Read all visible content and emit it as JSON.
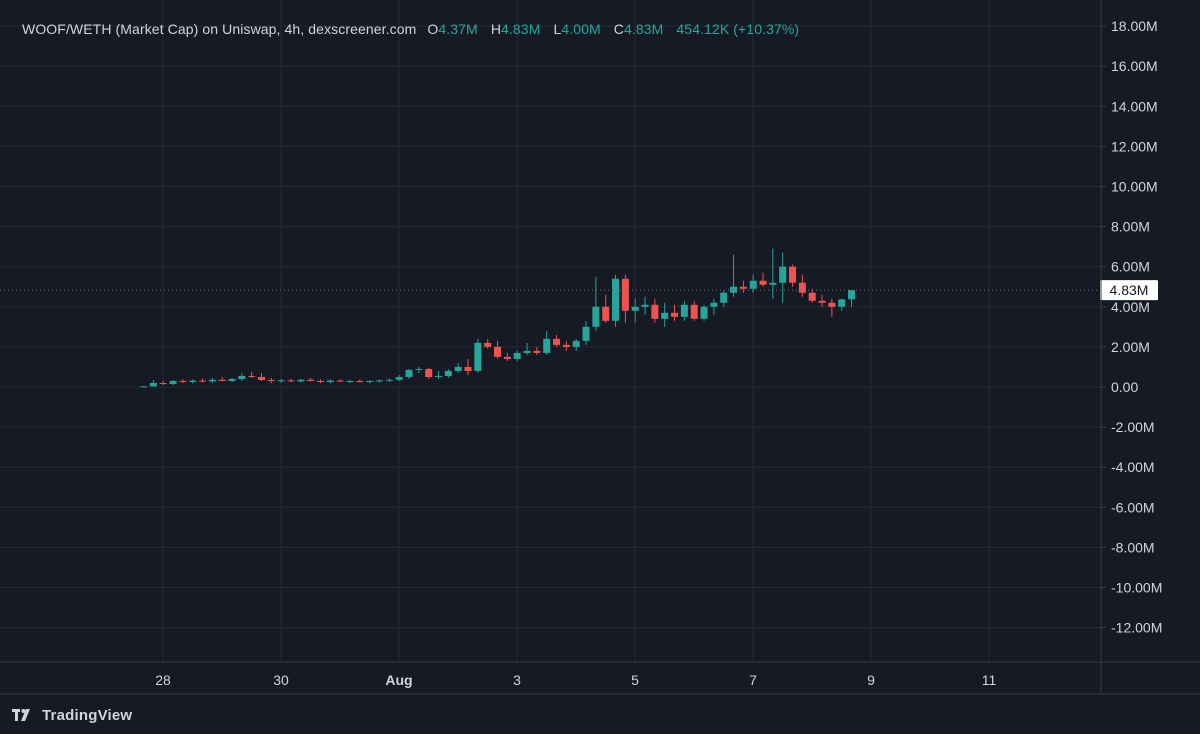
{
  "legend": {
    "title": "WOOF/WETH (Market Cap) on Uniswap, 4h, dexscreener.com",
    "open_key": "O",
    "open": "4.37M",
    "high_key": "H",
    "high": "4.83M",
    "low_key": "L",
    "low": "4.00M",
    "close_key": "C",
    "close": "4.83M",
    "change": "454.12K (+10.37%)"
  },
  "footer": {
    "brand": "TradingView",
    "logo_icon": "tradingview-logo-icon"
  },
  "colors": {
    "background": "#161a25",
    "grid": "#262a36",
    "up": "#26a69a",
    "down": "#ef5350",
    "text": "#d1d4dc"
  },
  "chart_data": {
    "type": "candlestick",
    "interval": "4h",
    "y_unit": "M (USD market cap)",
    "ylim": [
      -13,
      18.5
    ],
    "y_ticks": [
      18,
      16,
      14,
      12,
      10,
      8,
      6,
      4,
      2,
      0,
      -2,
      -4,
      -6,
      -8,
      -10,
      -12
    ],
    "y_tick_labels": [
      "18.00M",
      "16.00M",
      "14.00M",
      "12.00M",
      "10.00M",
      "8.00M",
      "6.00M",
      "4.00M",
      "2.00M",
      "0.00",
      "-2.00M",
      "-4.00M",
      "-6.00M",
      "-8.00M",
      "-10.00M",
      "-12.00M"
    ],
    "x_range_days": [
      26.5,
      43.3
    ],
    "x_ticks": [
      {
        "day": 28,
        "label": "28",
        "bold": false
      },
      {
        "day": 30,
        "label": "30",
        "bold": false
      },
      {
        "day": 32,
        "label": "Aug",
        "bold": true
      },
      {
        "day": 34,
        "label": "3",
        "bold": false
      },
      {
        "day": 36,
        "label": "5",
        "bold": false
      },
      {
        "day": 38,
        "label": "7",
        "bold": false
      },
      {
        "day": 40,
        "label": "9",
        "bold": false
      },
      {
        "day": 42,
        "label": "11",
        "bold": false
      }
    ],
    "last_price": 4.83,
    "last_price_label": "4.83M",
    "start_day": 27.67,
    "step_days": 0.16667,
    "candles": [
      [
        0.02,
        0.05,
        0.0,
        0.03
      ],
      [
        0.03,
        0.35,
        0.02,
        0.2
      ],
      [
        0.2,
        0.3,
        0.1,
        0.15
      ],
      [
        0.15,
        0.35,
        0.1,
        0.3
      ],
      [
        0.3,
        0.4,
        0.2,
        0.25
      ],
      [
        0.25,
        0.38,
        0.18,
        0.32
      ],
      [
        0.32,
        0.42,
        0.22,
        0.28
      ],
      [
        0.28,
        0.45,
        0.2,
        0.36
      ],
      [
        0.36,
        0.5,
        0.28,
        0.3
      ],
      [
        0.3,
        0.45,
        0.25,
        0.4
      ],
      [
        0.4,
        0.7,
        0.3,
        0.55
      ],
      [
        0.55,
        0.75,
        0.45,
        0.5
      ],
      [
        0.5,
        0.7,
        0.3,
        0.35
      ],
      [
        0.35,
        0.45,
        0.2,
        0.3
      ],
      [
        0.3,
        0.4,
        0.22,
        0.33
      ],
      [
        0.33,
        0.42,
        0.25,
        0.28
      ],
      [
        0.28,
        0.4,
        0.22,
        0.36
      ],
      [
        0.36,
        0.45,
        0.28,
        0.3
      ],
      [
        0.3,
        0.38,
        0.2,
        0.25
      ],
      [
        0.25,
        0.38,
        0.18,
        0.32
      ],
      [
        0.32,
        0.4,
        0.25,
        0.28
      ],
      [
        0.28,
        0.36,
        0.2,
        0.3
      ],
      [
        0.3,
        0.38,
        0.22,
        0.26
      ],
      [
        0.26,
        0.34,
        0.18,
        0.3
      ],
      [
        0.3,
        0.38,
        0.22,
        0.33
      ],
      [
        0.33,
        0.42,
        0.25,
        0.36
      ],
      [
        0.36,
        0.6,
        0.3,
        0.5
      ],
      [
        0.5,
        0.9,
        0.4,
        0.85
      ],
      [
        0.85,
        1.0,
        0.7,
        0.9
      ],
      [
        0.9,
        0.95,
        0.4,
        0.5
      ],
      [
        0.5,
        0.8,
        0.4,
        0.55
      ],
      [
        0.55,
        0.9,
        0.45,
        0.8
      ],
      [
        0.8,
        1.2,
        0.7,
        1.0
      ],
      [
        1.0,
        1.4,
        0.6,
        0.8
      ],
      [
        0.8,
        2.4,
        0.7,
        2.2
      ],
      [
        2.2,
        2.4,
        1.9,
        2.0
      ],
      [
        2.0,
        2.3,
        1.4,
        1.5
      ],
      [
        1.5,
        1.7,
        1.3,
        1.4
      ],
      [
        1.4,
        1.8,
        1.3,
        1.7
      ],
      [
        1.7,
        2.2,
        1.6,
        1.8
      ],
      [
        1.8,
        2.0,
        1.6,
        1.7
      ],
      [
        1.7,
        2.8,
        1.6,
        2.4
      ],
      [
        2.4,
        2.6,
        2.0,
        2.1
      ],
      [
        2.1,
        2.3,
        1.8,
        2.0
      ],
      [
        2.0,
        2.4,
        1.8,
        2.3
      ],
      [
        2.3,
        3.3,
        2.1,
        3.0
      ],
      [
        3.0,
        5.5,
        2.8,
        4.0
      ],
      [
        4.0,
        4.6,
        3.2,
        3.3
      ],
      [
        3.3,
        5.6,
        3.0,
        5.4
      ],
      [
        5.4,
        5.6,
        3.2,
        3.8
      ],
      [
        3.8,
        4.4,
        3.2,
        4.0
      ],
      [
        4.0,
        4.5,
        3.6,
        4.1
      ],
      [
        4.1,
        4.4,
        3.2,
        3.4
      ],
      [
        3.4,
        4.2,
        3.0,
        3.7
      ],
      [
        3.7,
        4.1,
        3.3,
        3.5
      ],
      [
        3.5,
        4.3,
        3.3,
        4.1
      ],
      [
        4.1,
        4.3,
        3.3,
        3.4
      ],
      [
        3.4,
        4.1,
        3.3,
        4.0
      ],
      [
        4.0,
        4.4,
        3.6,
        4.2
      ],
      [
        4.2,
        4.8,
        4.0,
        4.7
      ],
      [
        4.7,
        6.6,
        4.5,
        5.0
      ],
      [
        5.0,
        5.3,
        4.7,
        4.9
      ],
      [
        4.9,
        5.6,
        4.7,
        5.3
      ],
      [
        5.3,
        5.7,
        5.0,
        5.1
      ],
      [
        5.1,
        6.9,
        4.4,
        5.2
      ],
      [
        5.2,
        6.7,
        4.2,
        6.0
      ],
      [
        6.0,
        6.1,
        5.0,
        5.2
      ],
      [
        5.2,
        5.6,
        4.5,
        4.7
      ],
      [
        4.7,
        4.9,
        4.2,
        4.3
      ],
      [
        4.3,
        4.6,
        4.0,
        4.2
      ],
      [
        4.2,
        4.4,
        3.5,
        4.0
      ],
      [
        4.0,
        4.4,
        3.8,
        4.37
      ],
      [
        4.37,
        4.83,
        4.0,
        4.83
      ]
    ]
  }
}
